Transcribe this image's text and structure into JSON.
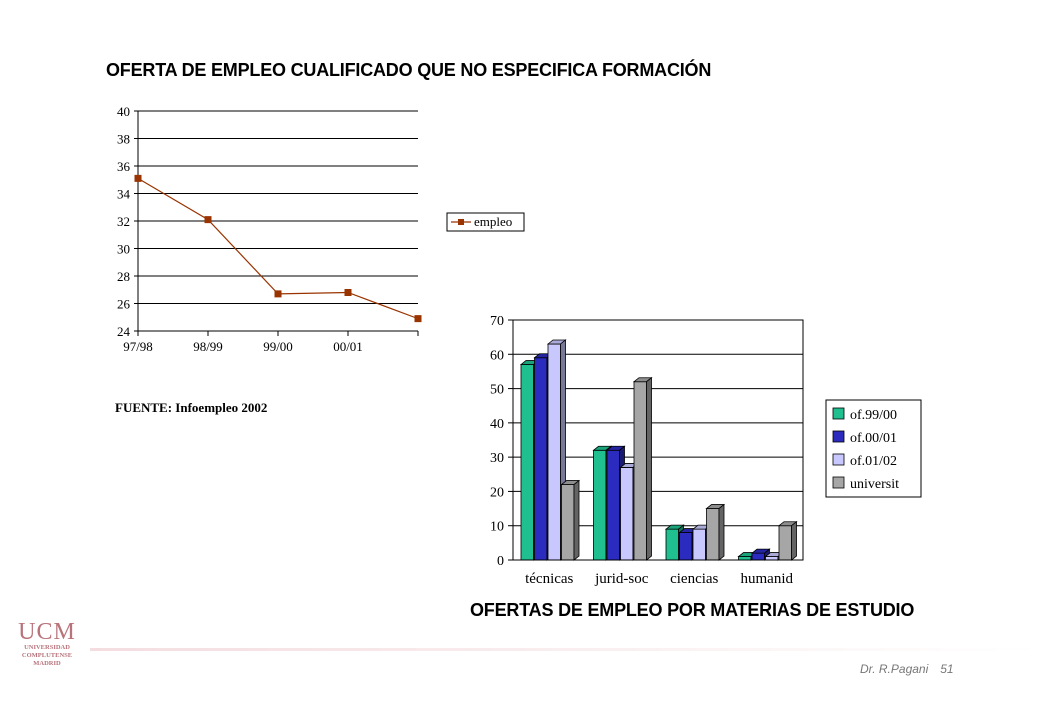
{
  "title_top": "OFERTA DE EMPLEO CUALIFICADO QUE NO ESPECIFICA FORMACIÓN",
  "title_bottom": "OFERTAS DE EMPLEO POR MATERIAS DE ESTUDIO",
  "source": "FUENTE: Infoempleo 2002",
  "logo": {
    "main": "UCM",
    "line1": "UNIVERSIDAD",
    "line2": "COMPLUTENSE",
    "line3": "MADRID"
  },
  "footer": {
    "author": "Dr. R.Pagani",
    "page": "51"
  },
  "colors": {
    "line": "#993300",
    "teal": "#1fbf8f",
    "blue": "#2b2bbf",
    "lavender": "#c8c8ff",
    "gray": "#a6a6a6"
  },
  "chart_data": [
    {
      "type": "line",
      "categories": [
        "97/98",
        "98/99",
        "99/00",
        "00/01",
        ""
      ],
      "series": [
        {
          "name": "empleo",
          "values": [
            35.1,
            32.1,
            26.7,
            26.8,
            24.9
          ]
        }
      ],
      "ylim": [
        24,
        40
      ],
      "yticks": [
        24,
        26,
        28,
        30,
        32,
        34,
        36,
        38,
        40
      ],
      "grid": true,
      "legend": "right"
    },
    {
      "type": "bar",
      "categories": [
        "técnicas",
        "jurid-soc",
        "ciencias",
        "humanid"
      ],
      "series": [
        {
          "name": "of.99/00",
          "values": [
            57,
            32,
            9,
            1
          ]
        },
        {
          "name": "of.00/01",
          "values": [
            59,
            32,
            8,
            2
          ]
        },
        {
          "name": "of.01/02",
          "values": [
            63,
            27,
            9,
            1
          ]
        },
        {
          "name": "universit",
          "values": [
            22,
            52,
            15,
            10
          ]
        }
      ],
      "ylim": [
        0,
        70
      ],
      "yticks": [
        0,
        10,
        20,
        30,
        40,
        50,
        60,
        70
      ],
      "grid": true,
      "legend": "right"
    }
  ]
}
